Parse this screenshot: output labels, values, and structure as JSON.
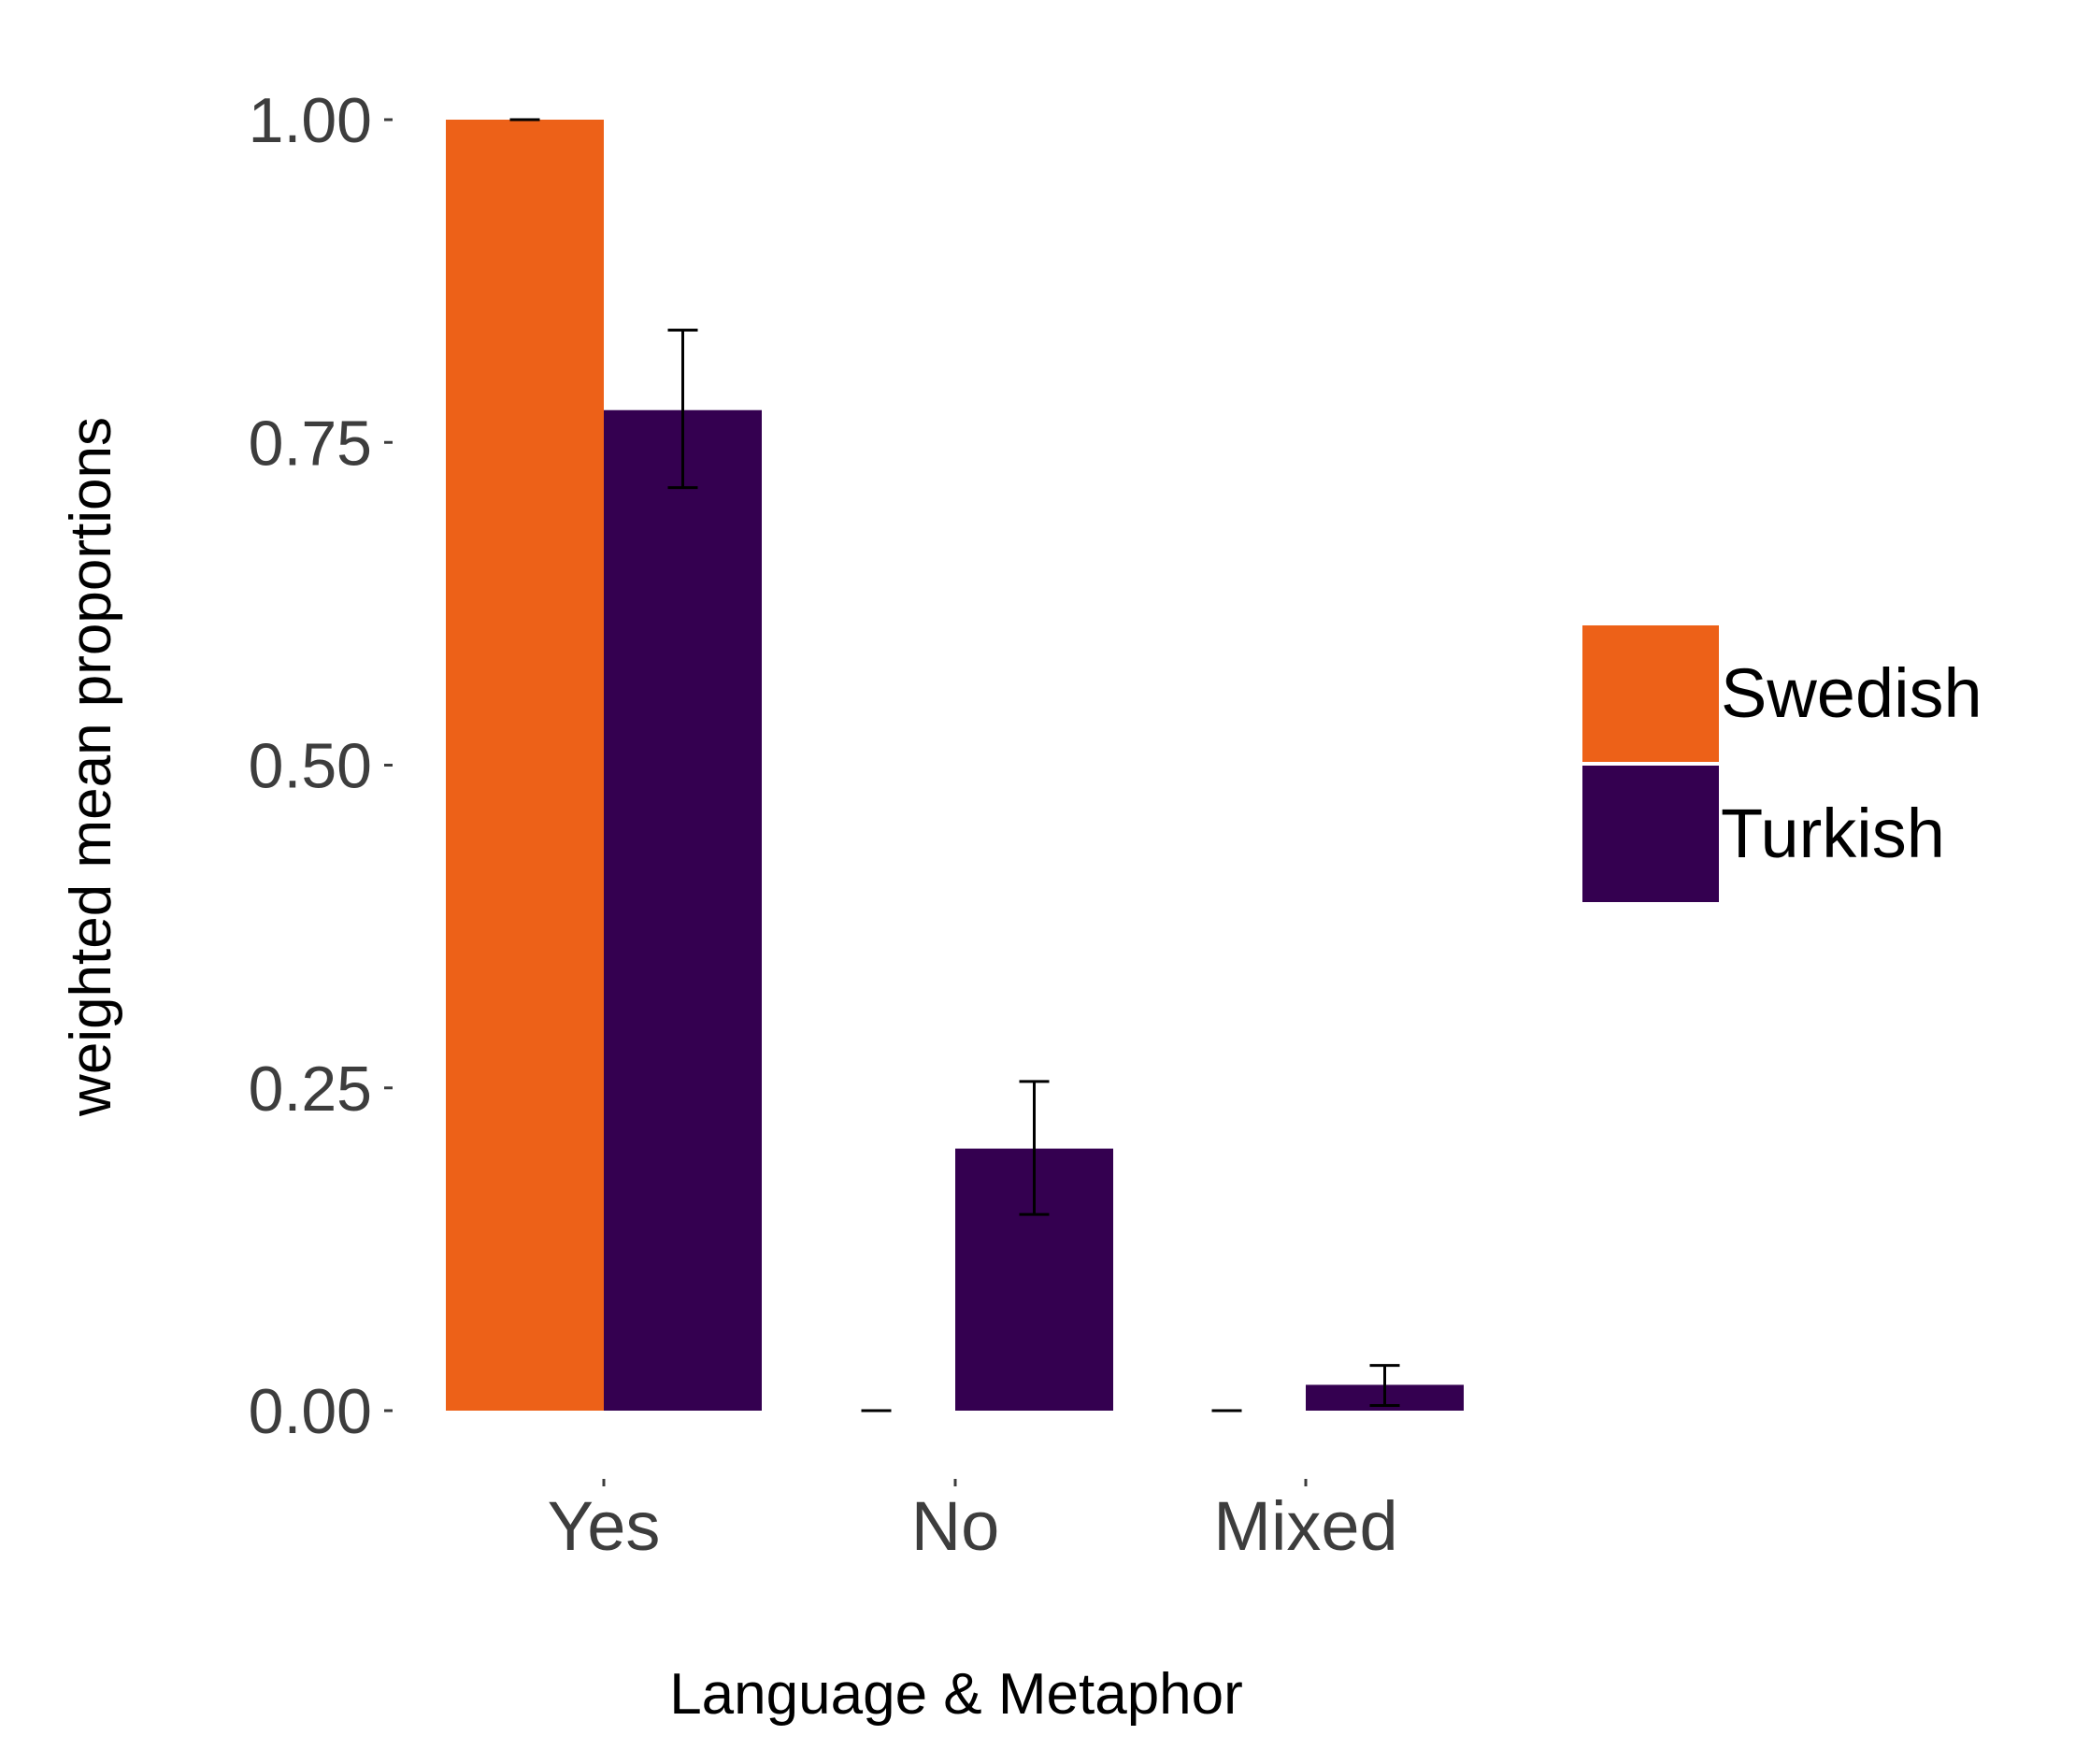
{
  "chart_data": {
    "type": "bar",
    "title": "",
    "xlabel": "Language & Metaphor",
    "ylabel": "weighted mean proportions",
    "categories": [
      "Yes",
      "No",
      "Mixed"
    ],
    "ylim": [
      0,
      1
    ],
    "yticks": [
      "0.00",
      "0.25",
      "0.50",
      "0.75",
      "1.00"
    ],
    "ytick_values": [
      0,
      0.25,
      0.5,
      0.75,
      1.0
    ],
    "grid": false,
    "legend_position": "right",
    "series": [
      {
        "name": "Swedish",
        "color": "#ED6118",
        "values": [
          1.0,
          0.0,
          0.0
        ],
        "error_low": [
          1.0,
          0.0,
          0.0
        ],
        "error_high": [
          1.0,
          0.0,
          0.0
        ]
      },
      {
        "name": "Turkish",
        "color": "#340050",
        "values": [
          0.775,
          0.203,
          0.02
        ],
        "error_low": [
          0.715,
          0.152,
          0.004
        ],
        "error_high": [
          0.837,
          0.255,
          0.035
        ]
      }
    ]
  }
}
